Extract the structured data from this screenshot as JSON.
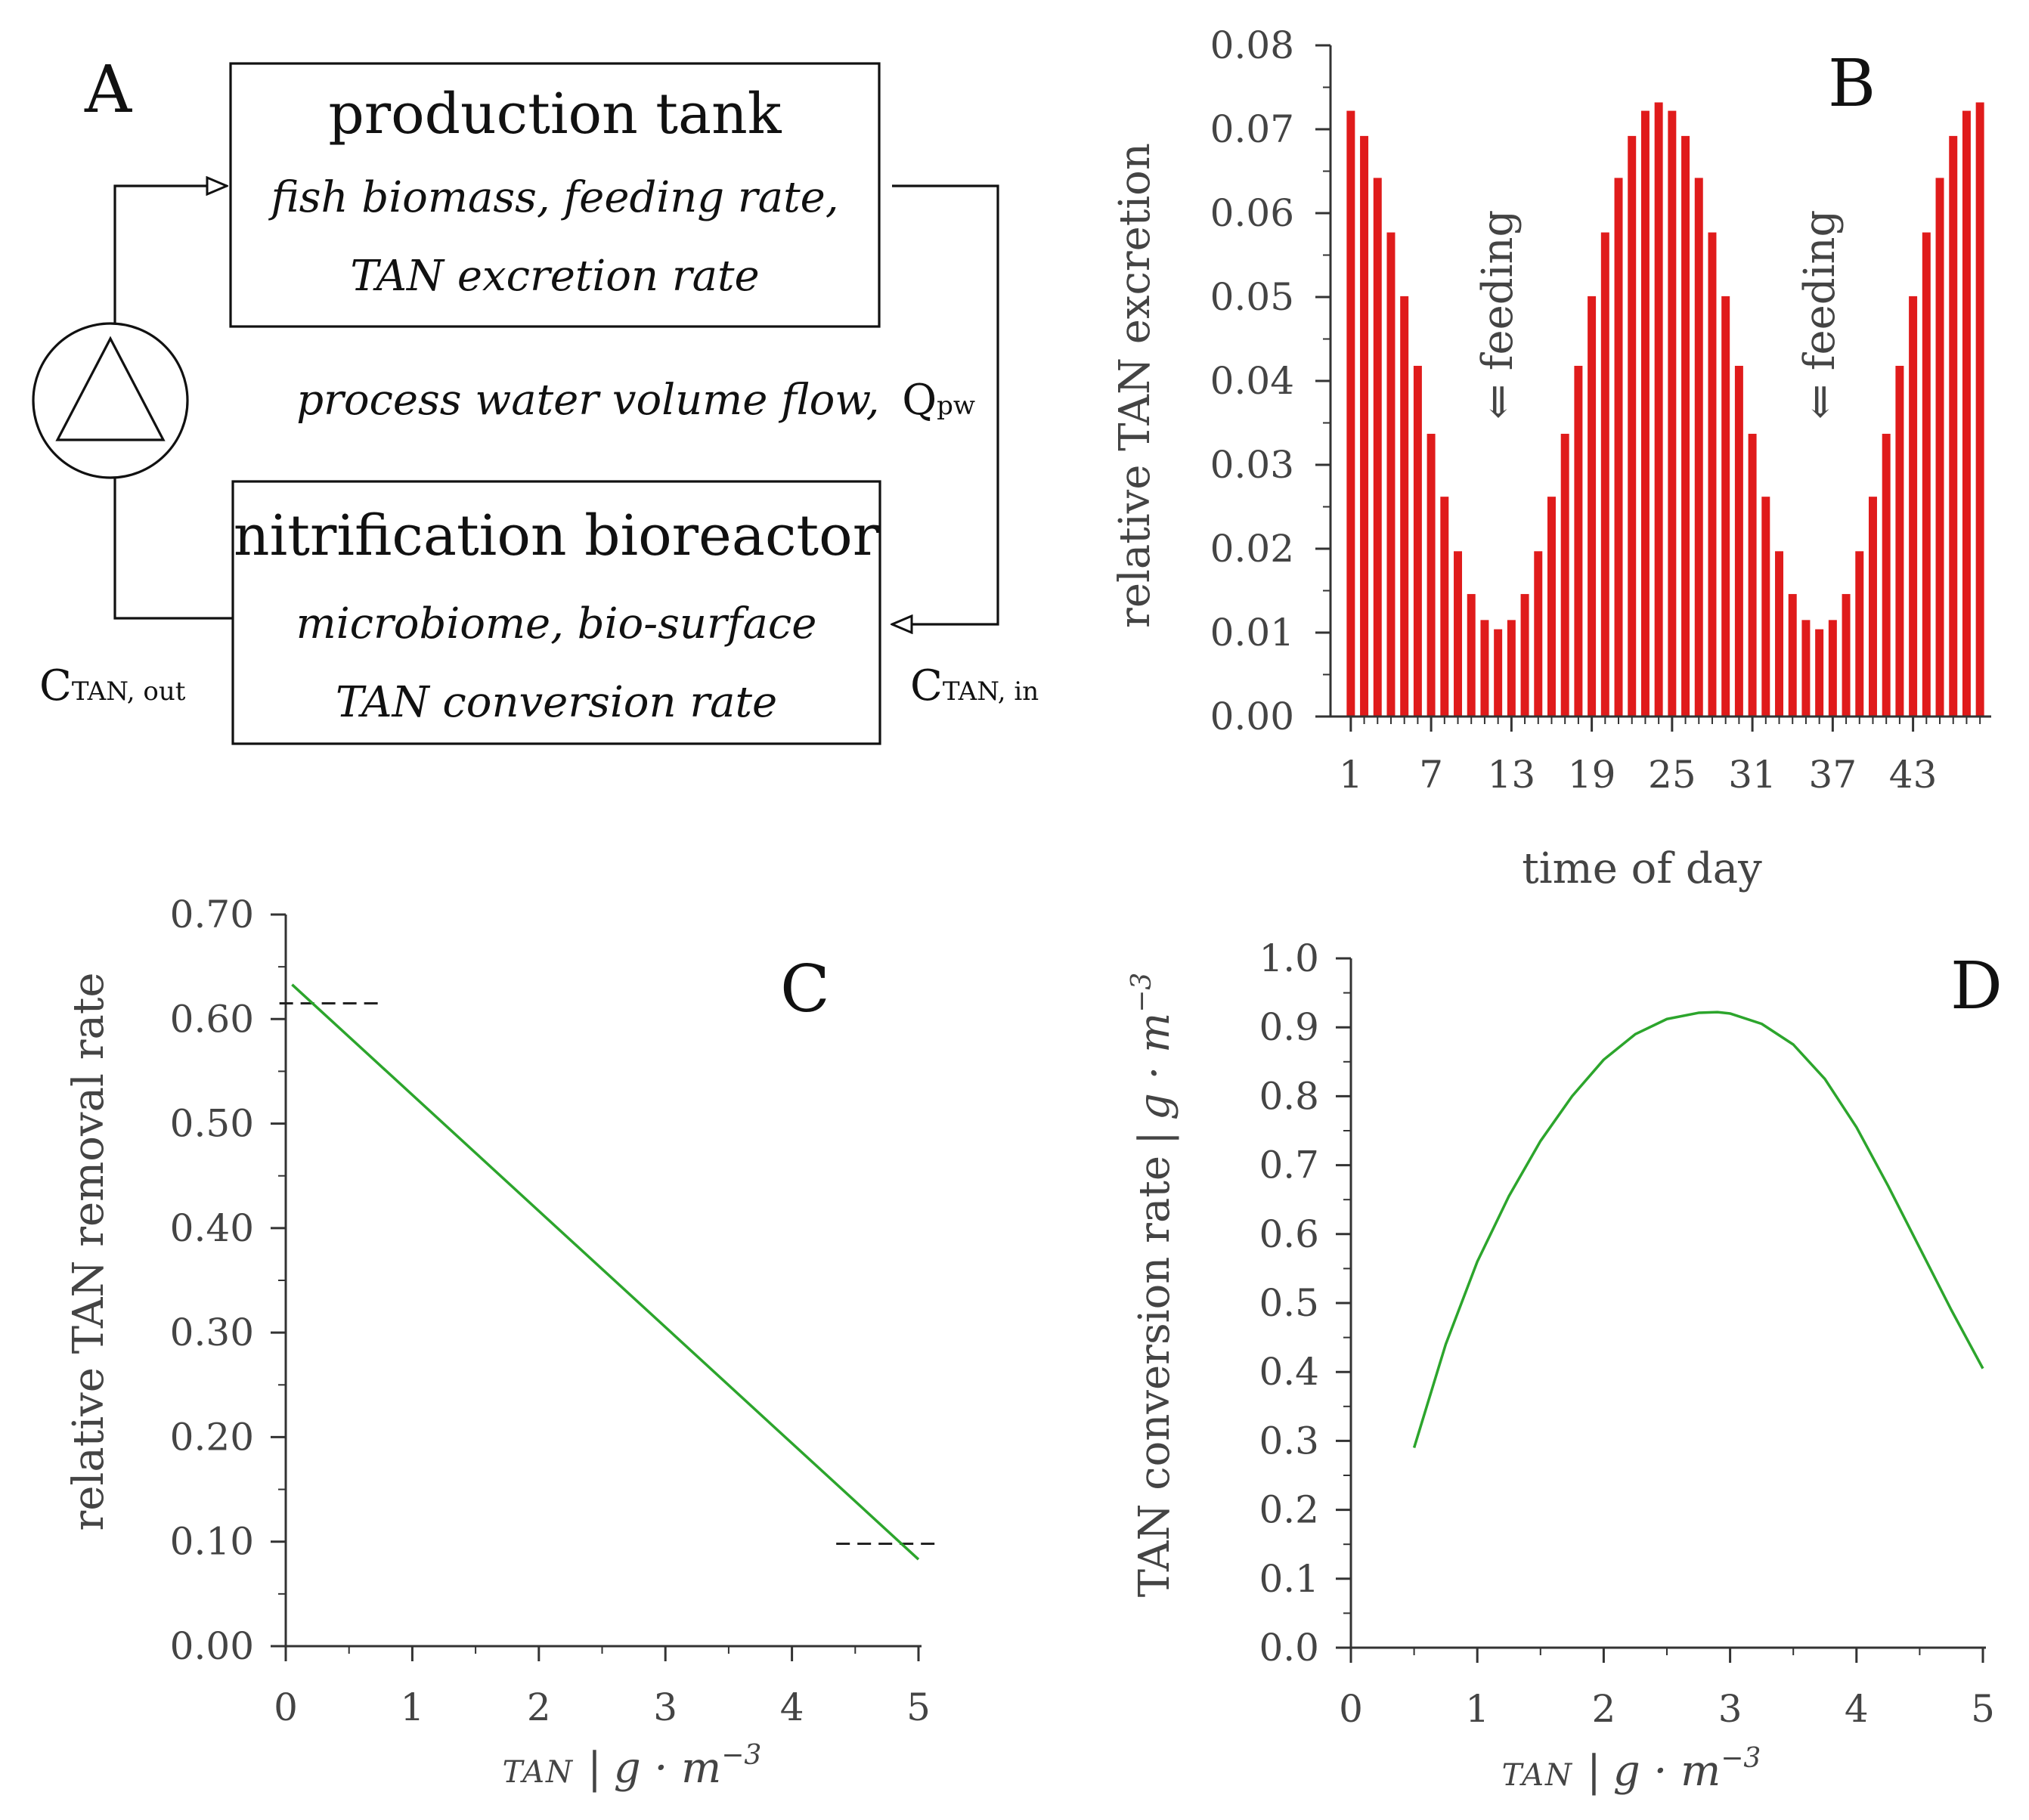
{
  "panel_labels": {
    "a": "A",
    "b": "B",
    "c": "C",
    "d": "D"
  },
  "diagram": {
    "top_box": {
      "title": "production tank",
      "line1": "fish biomass, feeding rate,",
      "line2": "TAN excretion rate"
    },
    "bottom_box": {
      "title": "nitrification bioreactor",
      "line1": "microbiome, bio-surface",
      "line2": "TAN conversion rate"
    },
    "flow_label": "process water volume flow,",
    "flow_symbol": "Q",
    "flow_subscript": "pw",
    "c_out": {
      "main": "C",
      "sub": "TAN, out"
    },
    "c_in": {
      "main": "C",
      "sub": "TAN, in"
    }
  },
  "chart_data": [
    {
      "panel": "B",
      "type": "bar",
      "title": "",
      "xlabel": "time of day",
      "ylabel": "relative TAN excretion",
      "ylim": [
        0,
        0.08
      ],
      "y_ticks": [
        "0.00",
        "0.01",
        "0.02",
        "0.03",
        "0.04",
        "0.05",
        "0.06",
        "0.07",
        "0.08"
      ],
      "x_ticks": [
        "1",
        "7",
        "13",
        "19",
        "25",
        "31",
        "37",
        "43"
      ],
      "color": "#e01b1b",
      "annotations": [
        "⇐ feeding",
        "⇐ feeding"
      ],
      "categories": [
        1,
        2,
        3,
        4,
        5,
        6,
        7,
        8,
        9,
        10,
        11,
        12,
        13,
        14,
        15,
        16,
        17,
        18,
        19,
        20,
        21,
        22,
        23,
        24,
        25,
        26,
        27,
        28,
        29,
        30,
        31,
        32,
        33,
        34,
        35,
        36,
        37,
        38,
        39,
        40,
        41,
        42,
        43,
        44,
        45,
        46,
        47,
        48
      ],
      "values": [
        0.0722,
        0.0692,
        0.0642,
        0.0577,
        0.0501,
        0.0418,
        0.0337,
        0.0262,
        0.0197,
        0.0146,
        0.0115,
        0.0104,
        0.0115,
        0.0146,
        0.0197,
        0.0262,
        0.0337,
        0.0418,
        0.0501,
        0.0577,
        0.0642,
        0.0692,
        0.0722,
        0.0732,
        0.0722,
        0.0692,
        0.0642,
        0.0577,
        0.0501,
        0.0418,
        0.0337,
        0.0262,
        0.0197,
        0.0146,
        0.0115,
        0.0104,
        0.0115,
        0.0146,
        0.0197,
        0.0262,
        0.0337,
        0.0418,
        0.0501,
        0.0577,
        0.0642,
        0.0692,
        0.0722,
        0.0732
      ]
    },
    {
      "panel": "C",
      "type": "line",
      "title": "",
      "xlabel": "TAN | g · m⁻³",
      "ylabel": "relative TAN removal rate",
      "xlim": [
        0,
        5
      ],
      "ylim": [
        0,
        0.7
      ],
      "x_ticks": [
        "0",
        "1",
        "2",
        "3",
        "4",
        "5"
      ],
      "y_ticks": [
        "0.00",
        "0.10",
        "0.20",
        "0.30",
        "0.40",
        "0.50",
        "0.60",
        "0.70"
      ],
      "color": "#2ca52c",
      "series": [
        {
          "name": "removal rate",
          "x": [
            0.05,
            5.0
          ],
          "y": [
            0.633,
            0.083
          ]
        }
      ],
      "reference_lines": [
        {
          "y": 0.615,
          "x": [
            -0.05,
            0.75
          ]
        },
        {
          "y": 0.098,
          "x": [
            4.35,
            5.15
          ]
        }
      ]
    },
    {
      "panel": "D",
      "type": "line",
      "title": "",
      "xlabel": "TAN | g · m⁻³",
      "ylabel": "TAN conversion rate | g · m⁻³",
      "xlim": [
        0,
        5
      ],
      "ylim": [
        0,
        1.0
      ],
      "x_ticks": [
        "0",
        "1",
        "2",
        "3",
        "4",
        "5"
      ],
      "y_ticks": [
        "0.0",
        "0.1",
        "0.2",
        "0.3",
        "0.4",
        "0.5",
        "0.6",
        "0.7",
        "0.8",
        "0.9",
        "1.0"
      ],
      "color": "#2ca52c",
      "series": [
        {
          "name": "conversion rate",
          "x": [
            0.5,
            0.75,
            1.0,
            1.25,
            1.5,
            1.75,
            2.0,
            2.25,
            2.5,
            2.75,
            2.9,
            3.0,
            3.25,
            3.5,
            3.75,
            4.0,
            4.25,
            4.5,
            4.75,
            5.0
          ],
          "y": [
            0.29,
            0.44,
            0.56,
            0.655,
            0.735,
            0.8,
            0.853,
            0.89,
            0.912,
            0.921,
            0.922,
            0.92,
            0.905,
            0.875,
            0.825,
            0.755,
            0.67,
            0.58,
            0.49,
            0.405
          ]
        }
      ]
    }
  ]
}
